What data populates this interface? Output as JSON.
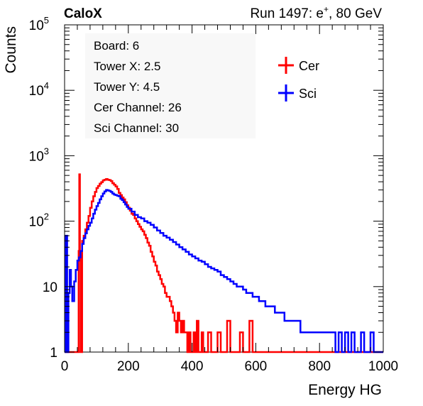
{
  "header": {
    "brand": "CaloX",
    "run_label": "Run 1497: e",
    "run_sup": "+",
    "run_rest": ", 80 GeV"
  },
  "info_box": {
    "lines": [
      "Board: 6",
      "Tower X: 2.5",
      "Tower Y: 4.5",
      "Cer Channel: 26",
      "Sci Channel: 30"
    ]
  },
  "colors": {
    "cer": "#ff0000",
    "sci": "#0000ff",
    "axis": "#000000"
  },
  "chart_data": {
    "type": "line",
    "xlabel": "Energy HG",
    "ylabel": "Counts",
    "xlim": [
      0,
      1000
    ],
    "ylim": [
      1,
      100000
    ],
    "yscale": "log",
    "legend_position": "top-right",
    "x_ticks": [
      "0",
      "200",
      "400",
      "600",
      "800",
      "1000"
    ],
    "y_ticks": [
      {
        "base": "1",
        "exp": ""
      },
      {
        "base": "10",
        "exp": ""
      },
      {
        "base": "10",
        "exp": "2"
      },
      {
        "base": "10",
        "exp": "3"
      },
      {
        "base": "10",
        "exp": "4"
      },
      {
        "base": "10",
        "exp": "5"
      }
    ],
    "series": [
      {
        "name": "Cer",
        "color": "#ff0000",
        "points": [
          [
            0,
            1
          ],
          [
            30,
            1
          ],
          [
            40,
            1
          ],
          [
            44,
            35
          ],
          [
            46,
            520
          ],
          [
            48,
            30
          ],
          [
            50,
            1
          ],
          [
            55,
            50
          ],
          [
            60,
            60
          ],
          [
            65,
            75
          ],
          [
            70,
            95
          ],
          [
            75,
            120
          ],
          [
            80,
            160
          ],
          [
            85,
            200
          ],
          [
            90,
            240
          ],
          [
            95,
            280
          ],
          [
            100,
            320
          ],
          [
            105,
            345
          ],
          [
            110,
            375
          ],
          [
            115,
            395
          ],
          [
            120,
            420
          ],
          [
            125,
            430
          ],
          [
            130,
            440
          ],
          [
            135,
            430
          ],
          [
            140,
            425
          ],
          [
            145,
            410
          ],
          [
            150,
            380
          ],
          [
            155,
            360
          ],
          [
            160,
            340
          ],
          [
            165,
            310
          ],
          [
            170,
            270
          ],
          [
            175,
            250
          ],
          [
            180,
            230
          ],
          [
            185,
            215
          ],
          [
            190,
            195
          ],
          [
            195,
            175
          ],
          [
            200,
            160
          ],
          [
            205,
            145
          ],
          [
            210,
            130
          ],
          [
            215,
            125
          ],
          [
            220,
            110
          ],
          [
            225,
            100
          ],
          [
            230,
            90
          ],
          [
            235,
            82
          ],
          [
            240,
            75
          ],
          [
            245,
            70
          ],
          [
            250,
            62
          ],
          [
            255,
            55
          ],
          [
            260,
            47
          ],
          [
            265,
            42
          ],
          [
            270,
            34
          ],
          [
            275,
            29
          ],
          [
            280,
            24
          ],
          [
            285,
            21
          ],
          [
            290,
            17
          ],
          [
            295,
            15
          ],
          [
            300,
            13
          ],
          [
            305,
            11
          ],
          [
            310,
            10
          ],
          [
            315,
            8
          ],
          [
            320,
            7
          ],
          [
            325,
            7
          ],
          [
            330,
            6
          ],
          [
            335,
            5
          ],
          [
            340,
            4
          ],
          [
            345,
            3
          ],
          [
            350,
            2
          ],
          [
            355,
            4
          ],
          [
            360,
            3
          ],
          [
            365,
            2
          ],
          [
            370,
            3
          ],
          [
            375,
            2
          ],
          [
            380,
            2
          ],
          [
            385,
            1
          ],
          [
            390,
            2
          ],
          [
            395,
            1
          ],
          [
            400,
            1
          ],
          [
            405,
            2
          ],
          [
            410,
            1
          ],
          [
            415,
            3
          ],
          [
            420,
            1
          ],
          [
            425,
            1
          ],
          [
            430,
            2
          ],
          [
            435,
            1
          ],
          [
            440,
            1
          ],
          [
            450,
            2
          ],
          [
            460,
            1
          ],
          [
            470,
            1
          ],
          [
            480,
            2
          ],
          [
            490,
            1
          ],
          [
            500,
            1
          ],
          [
            510,
            3
          ],
          [
            520,
            1
          ],
          [
            530,
            1
          ],
          [
            550,
            2
          ],
          [
            560,
            1
          ],
          [
            580,
            3
          ],
          [
            590,
            1
          ],
          [
            620,
            1
          ],
          [
            700,
            1
          ],
          [
            1000,
            1
          ]
        ]
      },
      {
        "name": "Sci",
        "color": "#0000ff",
        "points": [
          [
            0,
            1
          ],
          [
            4,
            60
          ],
          [
            8,
            1
          ],
          [
            12,
            8
          ],
          [
            16,
            18
          ],
          [
            20,
            10
          ],
          [
            24,
            6
          ],
          [
            30,
            12
          ],
          [
            35,
            18
          ],
          [
            40,
            25
          ],
          [
            45,
            28
          ],
          [
            50,
            35
          ],
          [
            55,
            45
          ],
          [
            60,
            55
          ],
          [
            65,
            65
          ],
          [
            70,
            75
          ],
          [
            75,
            85
          ],
          [
            80,
            95
          ],
          [
            85,
            110
          ],
          [
            90,
            130
          ],
          [
            95,
            150
          ],
          [
            100,
            170
          ],
          [
            105,
            190
          ],
          [
            110,
            215
          ],
          [
            115,
            240
          ],
          [
            120,
            265
          ],
          [
            125,
            285
          ],
          [
            130,
            300
          ],
          [
            135,
            295
          ],
          [
            140,
            290
          ],
          [
            145,
            280
          ],
          [
            150,
            265
          ],
          [
            155,
            255
          ],
          [
            160,
            250
          ],
          [
            165,
            245
          ],
          [
            170,
            240
          ],
          [
            175,
            220
          ],
          [
            180,
            210
          ],
          [
            185,
            195
          ],
          [
            190,
            180
          ],
          [
            195,
            165
          ],
          [
            200,
            155
          ],
          [
            210,
            140
          ],
          [
            220,
            125
          ],
          [
            230,
            115
          ],
          [
            240,
            110
          ],
          [
            250,
            100
          ],
          [
            260,
            95
          ],
          [
            270,
            88
          ],
          [
            280,
            80
          ],
          [
            290,
            72
          ],
          [
            300,
            66
          ],
          [
            310,
            60
          ],
          [
            320,
            56
          ],
          [
            330,
            52
          ],
          [
            340,
            48
          ],
          [
            350,
            44
          ],
          [
            360,
            40
          ],
          [
            370,
            37
          ],
          [
            380,
            34
          ],
          [
            390,
            31
          ],
          [
            400,
            29
          ],
          [
            410,
            27
          ],
          [
            420,
            25
          ],
          [
            430,
            24
          ],
          [
            440,
            22
          ],
          [
            450,
            20
          ],
          [
            460,
            19
          ],
          [
            470,
            18
          ],
          [
            480,
            17
          ],
          [
            490,
            15
          ],
          [
            500,
            14
          ],
          [
            510,
            13
          ],
          [
            520,
            12
          ],
          [
            530,
            11
          ],
          [
            540,
            10
          ],
          [
            550,
            10
          ],
          [
            560,
            9
          ],
          [
            570,
            8
          ],
          [
            580,
            8
          ],
          [
            590,
            7
          ],
          [
            600,
            7
          ],
          [
            610,
            6
          ],
          [
            620,
            6
          ],
          [
            630,
            5
          ],
          [
            640,
            5
          ],
          [
            650,
            5
          ],
          [
            660,
            4
          ],
          [
            670,
            4
          ],
          [
            680,
            4
          ],
          [
            690,
            3
          ],
          [
            700,
            3
          ],
          [
            710,
            3
          ],
          [
            720,
            3
          ],
          [
            730,
            3
          ],
          [
            740,
            2
          ],
          [
            750,
            2
          ],
          [
            760,
            2
          ],
          [
            770,
            2
          ],
          [
            780,
            2
          ],
          [
            790,
            2
          ],
          [
            800,
            2
          ],
          [
            810,
            2
          ],
          [
            820,
            2
          ],
          [
            830,
            2
          ],
          [
            840,
            2
          ],
          [
            850,
            1
          ],
          [
            860,
            2
          ],
          [
            870,
            1
          ],
          [
            880,
            2
          ],
          [
            890,
            1
          ],
          [
            900,
            2
          ],
          [
            910,
            1
          ],
          [
            920,
            1
          ],
          [
            930,
            2
          ],
          [
            940,
            1
          ],
          [
            950,
            1
          ],
          [
            960,
            2
          ],
          [
            970,
            1
          ],
          [
            980,
            1
          ],
          [
            990,
            1
          ],
          [
            1000,
            1
          ]
        ]
      }
    ]
  }
}
